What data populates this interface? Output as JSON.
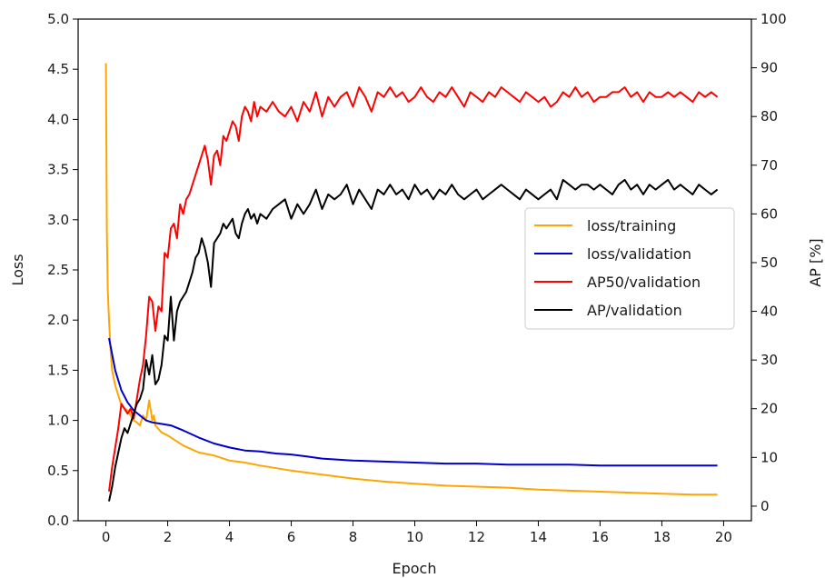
{
  "chart_data": {
    "type": "line",
    "xlabel": "Epoch",
    "ylabel_left": "Loss",
    "ylabel_right": "AP [%]",
    "xlim": [
      -0.9,
      20.9
    ],
    "ylim_left": [
      0,
      5
    ],
    "ylim_right": [
      -3,
      100
    ],
    "xticks": [
      "0",
      "2",
      "4",
      "6",
      "8",
      "10",
      "12",
      "14",
      "16",
      "18",
      "20"
    ],
    "yticks_left": [
      "0.0",
      "0.5",
      "1.0",
      "1.5",
      "2.0",
      "2.5",
      "3.0",
      "3.5",
      "4.0",
      "4.5",
      "5.0"
    ],
    "yticks_right": [
      "0",
      "10",
      "20",
      "30",
      "40",
      "50",
      "60",
      "70",
      "80",
      "90",
      "100"
    ],
    "grid": false,
    "legend_position": "center-right",
    "series": [
      {
        "name": "loss/training",
        "axis": "left",
        "color": "#ffa500",
        "x": [
          0,
          0.03,
          0.06,
          0.1,
          0.15,
          0.2,
          0.3,
          0.4,
          0.5,
          0.6,
          0.7,
          0.8,
          0.9,
          1.0,
          1.1,
          1.2,
          1.3,
          1.4,
          1.5,
          1.55,
          1.6,
          1.8,
          2.0,
          2.5,
          3.0,
          3.5,
          4.0,
          4.5,
          5.0,
          6.0,
          7.0,
          8.0,
          9.0,
          10.0,
          11.0,
          12.0,
          13.0,
          14.0,
          15.0,
          16.0,
          17.0,
          18.0,
          19.0,
          19.8
        ],
        "values": [
          4.56,
          2.9,
          2.3,
          2.0,
          1.7,
          1.5,
          1.35,
          1.25,
          1.15,
          1.12,
          1.1,
          1.05,
          1.0,
          0.98,
          0.95,
          1.05,
          1.0,
          1.2,
          1.0,
          1.05,
          0.95,
          0.88,
          0.85,
          0.75,
          0.68,
          0.65,
          0.6,
          0.58,
          0.55,
          0.5,
          0.46,
          0.42,
          0.39,
          0.37,
          0.35,
          0.34,
          0.33,
          0.31,
          0.3,
          0.29,
          0.28,
          0.27,
          0.26,
          0.26
        ]
      },
      {
        "name": "loss/validation",
        "axis": "left",
        "color": "#0000cd",
        "x": [
          0.1,
          0.3,
          0.5,
          0.7,
          0.9,
          1.1,
          1.3,
          1.5,
          1.7,
          1.9,
          2.1,
          2.5,
          3.0,
          3.5,
          4.0,
          4.5,
          5.0,
          5.5,
          6.0,
          6.5,
          7.0,
          8.0,
          9.0,
          10.0,
          11.0,
          12.0,
          13.0,
          14.0,
          15.0,
          16.0,
          17.0,
          18.0,
          19.0,
          19.8
        ],
        "values": [
          1.82,
          1.5,
          1.3,
          1.18,
          1.1,
          1.05,
          1.0,
          0.98,
          0.97,
          0.96,
          0.95,
          0.9,
          0.83,
          0.77,
          0.73,
          0.7,
          0.69,
          0.67,
          0.66,
          0.64,
          0.62,
          0.6,
          0.59,
          0.58,
          0.57,
          0.57,
          0.56,
          0.56,
          0.56,
          0.55,
          0.55,
          0.55,
          0.55,
          0.55
        ]
      },
      {
        "name": "AP50/validation",
        "axis": "right",
        "color": "#ff0000",
        "x": [
          0.1,
          0.2,
          0.3,
          0.4,
          0.5,
          0.6,
          0.7,
          0.8,
          0.9,
          1.0,
          1.1,
          1.2,
          1.3,
          1.4,
          1.5,
          1.6,
          1.7,
          1.8,
          1.9,
          2.0,
          2.1,
          2.2,
          2.3,
          2.4,
          2.5,
          2.6,
          2.7,
          2.8,
          2.9,
          3.0,
          3.1,
          3.2,
          3.3,
          3.4,
          3.5,
          3.6,
          3.7,
          3.8,
          3.9,
          4.0,
          4.1,
          4.2,
          4.3,
          4.4,
          4.5,
          4.6,
          4.7,
          4.8,
          4.9,
          5.0,
          5.2,
          5.4,
          5.6,
          5.8,
          6.0,
          6.2,
          6.4,
          6.6,
          6.8,
          7.0,
          7.2,
          7.4,
          7.6,
          7.8,
          8.0,
          8.2,
          8.4,
          8.6,
          8.8,
          9.0,
          9.2,
          9.4,
          9.6,
          9.8,
          10.0,
          10.2,
          10.4,
          10.6,
          10.8,
          11.0,
          11.2,
          11.4,
          11.6,
          11.8,
          12.0,
          12.2,
          12.4,
          12.6,
          12.8,
          13.0,
          13.2,
          13.4,
          13.6,
          13.8,
          14.0,
          14.2,
          14.4,
          14.6,
          14.8,
          15.0,
          15.2,
          15.4,
          15.6,
          15.8,
          16.0,
          16.2,
          16.4,
          16.6,
          16.8,
          17.0,
          17.2,
          17.4,
          17.6,
          17.8,
          18.0,
          18.2,
          18.4,
          18.6,
          18.8,
          19.0,
          19.2,
          19.4,
          19.6,
          19.8
        ],
        "values": [
          3,
          8,
          12,
          16,
          21,
          20,
          19,
          20,
          18,
          22,
          26,
          29,
          35,
          43,
          42,
          36,
          41,
          40,
          52,
          51,
          57,
          58,
          55,
          62,
          60,
          63,
          64,
          66,
          68,
          70,
          72,
          74,
          71,
          66,
          72,
          73,
          70,
          76,
          75,
          77,
          79,
          78,
          75,
          80,
          82,
          81,
          79,
          83,
          80,
          82,
          81,
          83,
          81,
          80,
          82,
          79,
          83,
          81,
          85,
          80,
          84,
          82,
          84,
          85,
          82,
          86,
          84,
          81,
          85,
          84,
          86,
          84,
          85,
          83,
          84,
          86,
          84,
          83,
          85,
          84,
          86,
          84,
          82,
          85,
          84,
          83,
          85,
          84,
          86,
          85,
          84,
          83,
          85,
          84,
          83,
          84,
          82,
          83,
          85,
          84,
          86,
          84,
          85,
          83,
          84,
          84,
          85,
          85,
          86,
          84,
          85,
          83,
          85,
          84,
          84,
          85,
          84,
          85,
          84,
          83,
          85,
          84,
          85,
          84
        ]
      },
      {
        "name": "AP/validation",
        "axis": "right",
        "color": "#000000",
        "x": [
          0.1,
          0.2,
          0.3,
          0.4,
          0.5,
          0.6,
          0.7,
          0.8,
          0.9,
          1.0,
          1.1,
          1.2,
          1.3,
          1.4,
          1.5,
          1.6,
          1.7,
          1.8,
          1.9,
          2.0,
          2.1,
          2.2,
          2.3,
          2.4,
          2.5,
          2.6,
          2.7,
          2.8,
          2.9,
          3.0,
          3.1,
          3.2,
          3.3,
          3.4,
          3.5,
          3.6,
          3.7,
          3.8,
          3.9,
          4.0,
          4.1,
          4.2,
          4.3,
          4.4,
          4.5,
          4.6,
          4.7,
          4.8,
          4.9,
          5.0,
          5.2,
          5.4,
          5.6,
          5.8,
          6.0,
          6.2,
          6.4,
          6.6,
          6.8,
          7.0,
          7.2,
          7.4,
          7.6,
          7.8,
          8.0,
          8.2,
          8.4,
          8.6,
          8.8,
          9.0,
          9.2,
          9.4,
          9.6,
          9.8,
          10.0,
          10.2,
          10.4,
          10.6,
          10.8,
          11.0,
          11.2,
          11.4,
          11.6,
          11.8,
          12.0,
          12.2,
          12.4,
          12.6,
          12.8,
          13.0,
          13.2,
          13.4,
          13.6,
          13.8,
          14.0,
          14.2,
          14.4,
          14.6,
          14.8,
          15.0,
          15.2,
          15.4,
          15.6,
          15.8,
          16.0,
          16.2,
          16.4,
          16.6,
          16.8,
          17.0,
          17.2,
          17.4,
          17.6,
          17.8,
          18.0,
          18.2,
          18.4,
          18.6,
          18.8,
          19.0,
          19.2,
          19.4,
          19.6,
          19.8
        ],
        "values": [
          1,
          4,
          8,
          11,
          14,
          16,
          15,
          17,
          19,
          21,
          22,
          24,
          30,
          27,
          31,
          25,
          26,
          29,
          35,
          34,
          43,
          34,
          40,
          42,
          43,
          44,
          46,
          48,
          51,
          52,
          55,
          53,
          50,
          45,
          54,
          55,
          56,
          58,
          57,
          58,
          59,
          56,
          55,
          58,
          60,
          61,
          59,
          60,
          58,
          60,
          59,
          61,
          62,
          63,
          59,
          62,
          60,
          62,
          65,
          61,
          64,
          63,
          64,
          66,
          62,
          65,
          63,
          61,
          65,
          64,
          66,
          64,
          65,
          63,
          66,
          64,
          65,
          63,
          65,
          64,
          66,
          64,
          63,
          64,
          65,
          63,
          64,
          65,
          66,
          65,
          64,
          63,
          65,
          64,
          63,
          64,
          65,
          63,
          67,
          66,
          65,
          66,
          66,
          65,
          66,
          65,
          64,
          66,
          67,
          65,
          66,
          64,
          66,
          65,
          66,
          67,
          65,
          66,
          65,
          64,
          66,
          65,
          64,
          65
        ]
      }
    ]
  }
}
